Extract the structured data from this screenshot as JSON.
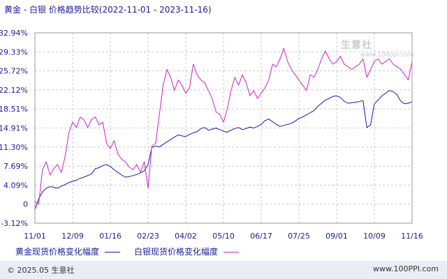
{
  "title": "黄金 - 白银 价格趋势比较(2022-11-01 - 2023-11-16)",
  "footer": {
    "copyright": "© 2025.05 生意社",
    "site": "www.100PPI.com"
  },
  "watermark": {
    "text": "生意社",
    "sub": "www.100ppi.com"
  },
  "colors": {
    "gold": "#1515b0",
    "silver": "#cc22cc",
    "grid": "#c8c8c8",
    "axis_text": "#1a1a99"
  },
  "chart_data": {
    "type": "line",
    "title": "黄金 - 白银 价格趋势比较(2022-11-01 - 2023-11-16)",
    "xlabel": "",
    "ylabel": "",
    "x_ticks": [
      "11/01",
      "12/09",
      "01/16",
      "02/23",
      "04/02",
      "05/10",
      "06/17",
      "07/25",
      "09/01",
      "10/09",
      "11/16"
    ],
    "y_ticks": [
      "-3.12%",
      "0",
      "4.09%",
      "7.69%",
      "11.30%",
      "14.91%",
      "18.51%",
      "22.12%",
      "25.72%",
      "29.33%",
      "32.94%"
    ],
    "ylim": [
      -3.12,
      32.94
    ],
    "legend_position": "bottom",
    "grid": true,
    "series": [
      {
        "name": "黄金现货价格变化幅度",
        "color": "#1515b0",
        "x": [
          0,
          1,
          2,
          3,
          4,
          5,
          6,
          7,
          8,
          9,
          10,
          11,
          12,
          13,
          14,
          15,
          16,
          17,
          18,
          19,
          20,
          21,
          22,
          23,
          24,
          25,
          26,
          27,
          28,
          29,
          30,
          31,
          32,
          33,
          34,
          35,
          36,
          37,
          38,
          39,
          40,
          41,
          42,
          43,
          44,
          45,
          46,
          47,
          48,
          49,
          50,
          51,
          52,
          53,
          54,
          55,
          56,
          57,
          58,
          59,
          60,
          61,
          62,
          63,
          64,
          65,
          66,
          67,
          68,
          69,
          70,
          71,
          72,
          73,
          74,
          75,
          76,
          77,
          78,
          79,
          80,
          81,
          82,
          83,
          84,
          85,
          86,
          87,
          88,
          89,
          90,
          91,
          92,
          93,
          94,
          95,
          96,
          97,
          98,
          99,
          100
        ],
        "values": [
          -0.5,
          1.5,
          2.8,
          3.5,
          3.8,
          3.7,
          3.5,
          3.9,
          4.2,
          4.6,
          4.8,
          5.0,
          5.4,
          5.6,
          5.9,
          6.2,
          7.2,
          7.4,
          7.8,
          8.0,
          7.6,
          7.0,
          6.5,
          6.0,
          5.6,
          5.7,
          5.9,
          6.1,
          6.4,
          6.8,
          8.0,
          11.2,
          11.5,
          11.3,
          11.8,
          12.3,
          12.7,
          13.2,
          13.6,
          13.4,
          13.3,
          13.7,
          14.0,
          14.2,
          14.8,
          15.0,
          14.5,
          14.7,
          14.9,
          14.6,
          14.3,
          14.1,
          14.5,
          14.8,
          15.0,
          14.6,
          14.8,
          15.1,
          14.9,
          15.2,
          15.6,
          16.3,
          16.6,
          16.1,
          15.6,
          15.2,
          15.4,
          15.6,
          15.8,
          16.2,
          16.7,
          17.0,
          17.4,
          17.8,
          18.2,
          19.0,
          19.6,
          20.2,
          20.5,
          20.9,
          21.0,
          20.7,
          20.0,
          19.6,
          19.7,
          19.8,
          19.9,
          20.1,
          15.0,
          15.5,
          19.5,
          20.2,
          21.0,
          21.5,
          22.0,
          21.8,
          21.2,
          20.0,
          19.5,
          19.6,
          19.9
        ]
      },
      {
        "name": "白银现货价格变化幅度",
        "color": "#cc22cc",
        "x": [
          0,
          1,
          2,
          3,
          4,
          5,
          6,
          7,
          8,
          9,
          10,
          11,
          12,
          13,
          14,
          15,
          16,
          17,
          18,
          19,
          20,
          21,
          22,
          23,
          24,
          25,
          26,
          27,
          28,
          29,
          30,
          31,
          32,
          33,
          34,
          35,
          36,
          37,
          38,
          39,
          40,
          41,
          42,
          43,
          44,
          45,
          46,
          47,
          48,
          49,
          50,
          51,
          52,
          53,
          54,
          55,
          56,
          57,
          58,
          59,
          60,
          61,
          62,
          63,
          64,
          65,
          66,
          67,
          68,
          69,
          70,
          71,
          72,
          73,
          74,
          75,
          76,
          77,
          78,
          79,
          80,
          81,
          82,
          83,
          84,
          85,
          86,
          87,
          88,
          89,
          90,
          91,
          92,
          93,
          94,
          95,
          96,
          97,
          98,
          99,
          100
        ],
        "values": [
          1.0,
          0.5,
          7.0,
          8.5,
          6.0,
          7.2,
          8.0,
          6.5,
          9.5,
          14.0,
          16.0,
          15.0,
          17.0,
          16.5,
          15.0,
          16.5,
          17.0,
          15.5,
          16.0,
          12.0,
          11.0,
          12.5,
          10.0,
          9.0,
          8.5,
          7.5,
          7.0,
          8.0,
          6.5,
          8.5,
          3.5,
          11.5,
          12.0,
          17.5,
          23.0,
          26.0,
          24.5,
          22.0,
          24.0,
          23.0,
          21.5,
          22.5,
          27.0,
          25.0,
          24.0,
          23.5,
          22.0,
          20.5,
          18.0,
          17.5,
          16.0,
          18.5,
          22.0,
          24.5,
          23.0,
          25.0,
          23.5,
          21.0,
          22.0,
          20.5,
          21.5,
          22.5,
          24.0,
          27.0,
          26.5,
          28.0,
          30.0,
          27.5,
          26.0,
          25.0,
          24.0,
          23.0,
          22.0,
          25.0,
          24.5,
          26.0,
          28.0,
          29.5,
          28.0,
          27.0,
          27.5,
          28.5,
          27.0,
          26.5,
          26.0,
          26.5,
          27.0,
          28.0,
          24.5,
          26.0,
          27.5,
          28.0,
          27.0,
          27.5,
          28.0,
          27.0,
          26.5,
          26.0,
          25.0,
          24.0,
          27.5
        ]
      }
    ]
  }
}
